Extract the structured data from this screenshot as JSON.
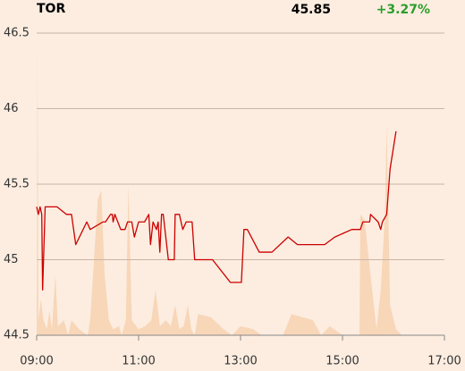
{
  "chart_data": {
    "type": "line",
    "title": "TOR",
    "last_price": "45.85",
    "change": "+3.27%",
    "change_color": "#2a9d2a",
    "xlim": [
      540,
      1020
    ],
    "xticks": [
      {
        "value": 540,
        "label": "09:00"
      },
      {
        "value": 660,
        "label": "11:00"
      },
      {
        "value": 780,
        "label": "13:00"
      },
      {
        "value": 900,
        "label": "15:00"
      },
      {
        "value": 1020,
        "label": "17:00"
      }
    ],
    "ylim": [
      44.5,
      46.5
    ],
    "yticks": [
      44.5,
      45.0,
      45.5,
      46.0,
      46.5
    ],
    "y2lim": [
      0,
      100
    ],
    "grid": true,
    "series": [
      {
        "color": "#cc0000",
        "x": [
          540,
          542,
          544,
          546,
          547,
          550,
          564,
          575,
          581,
          586,
          599,
          603,
          618,
          621,
          627,
          629,
          630,
          632,
          639,
          644,
          647,
          652,
          655,
          660,
          667,
          672,
          674,
          677,
          681,
          683,
          685,
          687,
          689,
          695,
          702,
          703,
          708,
          712,
          716,
          723,
          726,
          747,
          768,
          781,
          784,
          788,
          802,
          817,
          836,
          847,
          879,
          891,
          911,
          921,
          924,
          932,
          933,
          942,
          945,
          947,
          952,
          956,
          963
        ],
        "values": [
          45.35,
          45.3,
          45.35,
          45.3,
          44.8,
          45.35,
          45.35,
          45.3,
          45.3,
          45.1,
          45.25,
          45.2,
          45.25,
          45.25,
          45.3,
          45.3,
          45.25,
          45.3,
          45.2,
          45.2,
          45.25,
          45.25,
          45.15,
          45.25,
          45.25,
          45.3,
          45.1,
          45.25,
          45.2,
          45.25,
          45.05,
          45.3,
          45.3,
          45.0,
          45.0,
          45.3,
          45.3,
          45.2,
          45.25,
          45.25,
          45.0,
          45.0,
          44.85,
          44.85,
          45.2,
          45.2,
          45.05,
          45.05,
          45.15,
          45.1,
          45.1,
          45.15,
          45.2,
          45.2,
          45.25,
          45.25,
          45.3,
          45.25,
          45.2,
          45.25,
          45.3,
          45.6,
          45.85
        ]
      },
      {
        "color": "#f8d6b8",
        "axis": "y2",
        "x": [
          540,
          541,
          542,
          545,
          548,
          552,
          555,
          558,
          562,
          565,
          572,
          577,
          581,
          590,
          600,
          603,
          612,
          616,
          620,
          625,
          630,
          637,
          640,
          645,
          648,
          652,
          660,
          668,
          675,
          680,
          685,
          692,
          698,
          703,
          708,
          713,
          718,
          722,
          726,
          730,
          745,
          760,
          770,
          780,
          795,
          805,
          830,
          840,
          865,
          875,
          885,
          900,
          920,
          921,
          926,
          940,
          945,
          950,
          952,
          956,
          963,
          970
        ],
        "values": [
          0,
          96,
          5,
          12,
          5,
          2,
          8,
          2,
          20,
          3,
          5,
          0,
          5,
          2,
          0,
          5,
          45,
          48,
          20,
          5,
          2,
          3,
          0,
          5,
          50,
          5,
          2,
          3,
          5,
          15,
          3,
          5,
          3,
          10,
          2,
          3,
          10,
          2,
          0,
          7,
          6,
          2,
          0,
          3,
          2,
          0,
          0,
          7,
          5,
          0,
          3,
          0,
          0,
          40,
          38,
          2,
          15,
          40,
          70,
          10,
          2,
          0
        ]
      }
    ]
  }
}
